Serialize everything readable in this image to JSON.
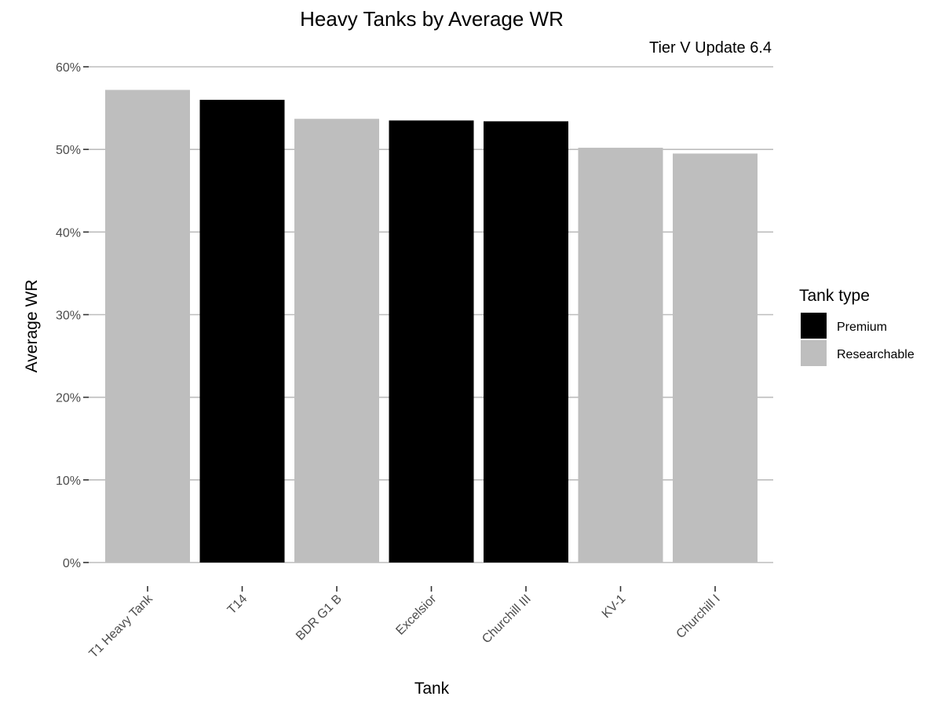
{
  "chart_data": {
    "type": "bar",
    "title": "Heavy Tanks by Average WR",
    "subtitle": "Tier V Update 6.4",
    "xlabel": "Tank",
    "ylabel": "Average WR",
    "categories": [
      "T1 Heavy Tank",
      "T14",
      "BDR G1 B",
      "Excelsior",
      "Churchill III",
      "KV-1",
      "Churchill I"
    ],
    "values": [
      57.2,
      56.0,
      53.7,
      53.5,
      53.4,
      50.2,
      49.5
    ],
    "groups": [
      "Researchable",
      "Premium",
      "Researchable",
      "Premium",
      "Premium",
      "Researchable",
      "Researchable"
    ],
    "ylim": [
      0,
      60
    ],
    "yticks": [
      0,
      10,
      20,
      30,
      40,
      50,
      60
    ],
    "ytick_labels": [
      "0%",
      "10%",
      "20%",
      "30%",
      "40%",
      "50%",
      "60%"
    ],
    "grid": true,
    "legend": {
      "title": "Tank type",
      "position": "right",
      "entries": [
        {
          "label": "Premium",
          "color": "#000000"
        },
        {
          "label": "Researchable",
          "color": "#bebebe"
        }
      ]
    }
  }
}
